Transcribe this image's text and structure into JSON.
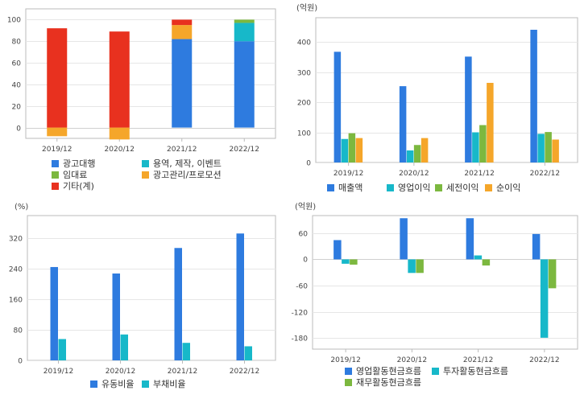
{
  "colors": {
    "blue": "#2E7BDF",
    "cyan": "#17B8C9",
    "green": "#7CB83F",
    "orange": "#F5A62A",
    "red": "#E8311F"
  },
  "chart_data": [
    {
      "type": "bar",
      "stacked": true,
      "unit_label": "",
      "categories": [
        "2019/12",
        "2020/12",
        "2021/12",
        "2022/12"
      ],
      "y_ticks": [
        0,
        20,
        40,
        60,
        80,
        100
      ],
      "ylim": [
        -10,
        110
      ],
      "grid": true,
      "legend_position": "bottom",
      "series": [
        {
          "name": "광고대행",
          "color": "#2E7BDF",
          "values": [
            0,
            0,
            82,
            80
          ]
        },
        {
          "name": "용역, 제작, 이벤트",
          "color": "#17B8C9",
          "values": [
            0,
            0,
            0,
            17
          ]
        },
        {
          "name": "임대료",
          "color": "#7CB83F",
          "values": [
            0,
            0,
            0,
            3
          ]
        },
        {
          "name": "광고관리/프로모션",
          "color": "#F5A62A",
          "values": [
            8,
            11,
            13,
            0
          ]
        },
        {
          "name": "기타(계)",
          "color": "#E8311F",
          "values": [
            92,
            89,
            5,
            0
          ]
        }
      ],
      "negative_offset": [
        -8,
        -11,
        0,
        0
      ]
    },
    {
      "type": "bar",
      "unit_label": "(억원)",
      "categories": [
        "2019/12",
        "2020/12",
        "2021/12",
        "2022/12"
      ],
      "y_ticks": [
        0,
        100,
        200,
        300,
        400
      ],
      "ylim": [
        0,
        480
      ],
      "grid": true,
      "legend_position": "bottom",
      "series": [
        {
          "name": "매출액",
          "color": "#2E7BDF",
          "values": [
            367,
            253,
            351,
            440
          ]
        },
        {
          "name": "영업이익",
          "color": "#17B8C9",
          "values": [
            78,
            40,
            100,
            95
          ]
        },
        {
          "name": "세전이익",
          "color": "#7CB83F",
          "values": [
            97,
            58,
            124,
            101
          ]
        },
        {
          "name": "순이익",
          "color": "#F5A62A",
          "values": [
            81,
            81,
            264,
            76
          ]
        }
      ]
    },
    {
      "type": "bar",
      "unit_label": "(%)",
      "categories": [
        "2019/12",
        "2020/12",
        "2021/12",
        "2022/12"
      ],
      "y_ticks": [
        0,
        80,
        160,
        240,
        320
      ],
      "ylim": [
        0,
        380
      ],
      "grid": true,
      "legend_position": "bottom",
      "series": [
        {
          "name": "유동비율",
          "color": "#2E7BDF",
          "values": [
            245,
            228,
            295,
            333
          ]
        },
        {
          "name": "부채비율",
          "color": "#17B8C9",
          "values": [
            56,
            68,
            46,
            37
          ]
        }
      ]
    },
    {
      "type": "bar",
      "unit_label": "(억원)",
      "categories": [
        "2019/12",
        "2020/12",
        "2021/12",
        "2022/12"
      ],
      "y_ticks": [
        60,
        0,
        -60,
        -120,
        -180
      ],
      "ylim": [
        -205,
        100
      ],
      "grid": true,
      "legend_position": "bottom",
      "series": [
        {
          "name": "영업활동현금흐름",
          "color": "#2E7BDF",
          "values": [
            44,
            94,
            94,
            58
          ]
        },
        {
          "name": "투자활동현금흐름",
          "color": "#17B8C9",
          "values": [
            -10,
            -31,
            9,
            -179
          ]
        },
        {
          "name": "재무활동현금흐름",
          "color": "#7CB83F",
          "values": [
            -12,
            -31,
            -14,
            -66
          ]
        }
      ]
    }
  ]
}
